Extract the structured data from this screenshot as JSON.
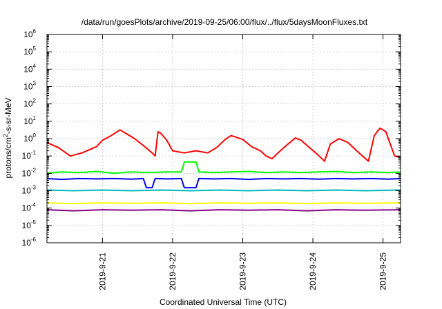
{
  "chart_data": {
    "type": "line",
    "title": "/data/run/goesPlots/archive/2019-09-25/06:00/flux/../flux/5daysMoonFluxes.txt",
    "xlabel": "Coordinated Universal Time (UTC)",
    "ylabel": {
      "base": "protons/cm",
      "superscript": "2",
      "rest": "-s-sr-MeV"
    },
    "x_range": [
      "2019-09-20T05:00",
      "2019-09-25T06:00"
    ],
    "y_scale": "log",
    "ylim": [
      1e-06,
      1000000.0
    ],
    "grid": true,
    "legend": "none",
    "x_ticks": [
      "2019-9-21",
      "2019-9-22",
      "2019-9-23",
      "2019-9-24",
      "2019-9-25"
    ],
    "y_ticks": [
      {
        "value": 1e-06,
        "base": "10",
        "exp": "-6"
      },
      {
        "value": 1e-05,
        "base": "10",
        "exp": "-5"
      },
      {
        "value": 0.0001,
        "base": "10",
        "exp": "-4"
      },
      {
        "value": 0.001,
        "base": "10",
        "exp": "-3"
      },
      {
        "value": 0.01,
        "base": "10",
        "exp": "-2"
      },
      {
        "value": 0.1,
        "base": "10",
        "exp": "-1"
      },
      {
        "value": 1,
        "base": "10",
        "exp": "0"
      },
      {
        "value": 10,
        "base": "10",
        "exp": "1"
      },
      {
        "value": 100,
        "base": "10",
        "exp": "2"
      },
      {
        "value": 1000,
        "base": "10",
        "exp": "3"
      },
      {
        "value": 10000,
        "base": "10",
        "exp": "4"
      },
      {
        "value": 100000,
        "base": "10",
        "exp": "5"
      },
      {
        "value": 1000000,
        "base": "10",
        "exp": "6"
      }
    ],
    "series": [
      {
        "color": "#ff0000",
        "x": [
          "2019-09-20T05:00",
          "2019-09-20T09:00",
          "2019-09-20T13:00",
          "2019-09-20T17:00",
          "2019-09-20T22:00",
          "2019-09-21T00:00",
          "2019-09-21T03:00",
          "2019-09-21T06:00",
          "2019-09-21T08:00",
          "2019-09-21T11:00",
          "2019-09-21T14:00",
          "2019-09-21T17:00",
          "2019-09-21T18:00",
          "2019-09-21T19:00",
          "2019-09-21T20:00",
          "2019-09-21T22:00",
          "2019-09-22T00:00",
          "2019-09-22T04:00",
          "2019-09-22T08:00",
          "2019-09-22T12:00",
          "2019-09-22T15:00",
          "2019-09-22T18:00",
          "2019-09-22T20:00",
          "2019-09-23T00:00",
          "2019-09-23T03:00",
          "2019-09-23T06:00",
          "2019-09-23T08:00",
          "2019-09-23T10:00",
          "2019-09-23T14:00",
          "2019-09-23T18:00",
          "2019-09-23T20:00",
          "2019-09-23T22:00",
          "2019-09-24T01:00",
          "2019-09-24T04:00",
          "2019-09-24T06:00",
          "2019-09-24T09:00",
          "2019-09-24T12:00",
          "2019-09-24T15:00",
          "2019-09-24T17:00",
          "2019-09-24T19:00",
          "2019-09-24T21:00",
          "2019-09-24T23:00",
          "2019-09-25T01:00",
          "2019-09-25T02:00",
          "2019-09-25T04:00",
          "2019-09-25T06:00"
        ],
        "y": [
          0.6,
          0.3,
          0.1,
          0.15,
          0.35,
          0.8,
          1.5,
          3.2,
          2.0,
          1.0,
          0.4,
          0.15,
          0.1,
          2.5,
          2.0,
          0.8,
          0.2,
          0.15,
          0.2,
          0.15,
          0.3,
          0.9,
          1.5,
          0.9,
          0.35,
          0.2,
          0.1,
          0.07,
          0.3,
          1.1,
          0.8,
          0.4,
          0.15,
          0.05,
          0.5,
          1.0,
          0.6,
          0.2,
          0.1,
          0.05,
          1.5,
          4.0,
          2.5,
          0.8,
          0.1,
          0.08
        ]
      },
      {
        "color": "#00ff00",
        "x": [
          "2019-09-20T05:00",
          "2019-09-20T10:00",
          "2019-09-20T16:00",
          "2019-09-20T22:00",
          "2019-09-21T04:00",
          "2019-09-21T10:00",
          "2019-09-21T16:00",
          "2019-09-21T22:00",
          "2019-09-22T03:00",
          "2019-09-22T04:00",
          "2019-09-22T08:00",
          "2019-09-22T09:00",
          "2019-09-22T14:00",
          "2019-09-22T20:00",
          "2019-09-23T02:00",
          "2019-09-23T08:00",
          "2019-09-23T14:00",
          "2019-09-23T20:00",
          "2019-09-24T02:00",
          "2019-09-24T08:00",
          "2019-09-24T14:00",
          "2019-09-24T20:00",
          "2019-09-25T02:00",
          "2019-09-25T06:00"
        ],
        "y": [
          0.01,
          0.012,
          0.011,
          0.013,
          0.01,
          0.012,
          0.011,
          0.012,
          0.012,
          0.045,
          0.045,
          0.012,
          0.011,
          0.012,
          0.013,
          0.011,
          0.012,
          0.011,
          0.012,
          0.013,
          0.011,
          0.012,
          0.011,
          0.012
        ]
      },
      {
        "color": "#0000ff",
        "x": [
          "2019-09-20T05:00",
          "2019-09-20T10:00",
          "2019-09-20T16:00",
          "2019-09-20T22:00",
          "2019-09-21T04:00",
          "2019-09-21T10:00",
          "2019-09-21T14:00",
          "2019-09-21T15:00",
          "2019-09-21T17:00",
          "2019-09-21T18:00",
          "2019-09-21T22:00",
          "2019-09-22T03:00",
          "2019-09-22T04:00",
          "2019-09-22T08:00",
          "2019-09-22T09:00",
          "2019-09-22T14:00",
          "2019-09-22T20:00",
          "2019-09-23T02:00",
          "2019-09-23T08:00",
          "2019-09-23T14:00",
          "2019-09-23T20:00",
          "2019-09-24T02:00",
          "2019-09-24T08:00",
          "2019-09-24T14:00",
          "2019-09-24T20:00",
          "2019-09-25T02:00",
          "2019-09-25T06:00"
        ],
        "y": [
          0.005,
          0.0045,
          0.005,
          0.0048,
          0.005,
          0.0046,
          0.005,
          0.0015,
          0.0015,
          0.005,
          0.0048,
          0.005,
          0.0015,
          0.0015,
          0.005,
          0.0048,
          0.005,
          0.0045,
          0.005,
          0.0048,
          0.005,
          0.0046,
          0.005,
          0.0048,
          0.005,
          0.0046,
          0.005
        ]
      },
      {
        "color": "#00bbbb",
        "x": [
          "2019-09-20T05:00",
          "2019-09-20T14:00",
          "2019-09-21T00:00",
          "2019-09-21T10:00",
          "2019-09-21T20:00",
          "2019-09-22T06:00",
          "2019-09-22T16:00",
          "2019-09-23T02:00",
          "2019-09-23T12:00",
          "2019-09-23T22:00",
          "2019-09-24T08:00",
          "2019-09-24T18:00",
          "2019-09-25T06:00"
        ],
        "y": [
          0.0011,
          0.001,
          0.0011,
          0.001,
          0.0011,
          0.001,
          0.0011,
          0.001,
          0.0011,
          0.001,
          0.0011,
          0.001,
          0.0011
        ]
      },
      {
        "color": "#ffff00",
        "x": [
          "2019-09-20T05:00",
          "2019-09-20T14:00",
          "2019-09-21T00:00",
          "2019-09-21T10:00",
          "2019-09-21T20:00",
          "2019-09-22T06:00",
          "2019-09-22T16:00",
          "2019-09-23T02:00",
          "2019-09-23T12:00",
          "2019-09-23T22:00",
          "2019-09-24T08:00",
          "2019-09-24T18:00",
          "2019-09-25T06:00"
        ],
        "y": [
          0.0002,
          0.00018,
          0.0002,
          0.00019,
          0.0002,
          0.00018,
          0.0002,
          0.00019,
          0.0002,
          0.00018,
          0.0002,
          0.00019,
          0.0002
        ]
      },
      {
        "color": "#880088",
        "x": [
          "2019-09-20T05:00",
          "2019-09-20T14:00",
          "2019-09-21T00:00",
          "2019-09-21T10:00",
          "2019-09-21T20:00",
          "2019-09-22T06:00",
          "2019-09-22T16:00",
          "2019-09-23T02:00",
          "2019-09-23T12:00",
          "2019-09-23T22:00",
          "2019-09-24T08:00",
          "2019-09-24T18:00",
          "2019-09-25T06:00"
        ],
        "y": [
          8e-05,
          7e-05,
          8e-05,
          7.5e-05,
          8e-05,
          7e-05,
          8e-05,
          7.5e-05,
          8e-05,
          7e-05,
          8e-05,
          7.5e-05,
          8e-05
        ]
      }
    ]
  }
}
